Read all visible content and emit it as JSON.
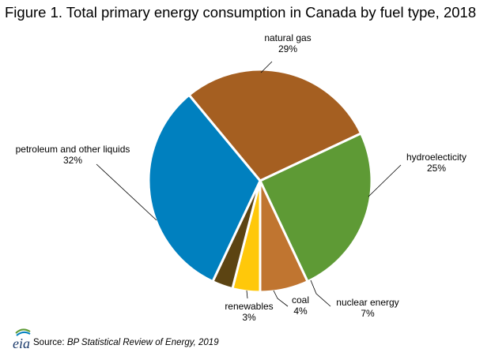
{
  "title": "Figure 1. Total primary energy consumption in Canada by fuel type, 2018",
  "source": {
    "prefix": "Source: ",
    "publication": "BP Statistical Review of Energy, 2019"
  },
  "logo": {
    "name": "eia-logo",
    "text": "eia"
  },
  "colors": {
    "natural_gas": "#a55f21",
    "hydro": "#5e9a35",
    "nuclear": "#c07530",
    "coal": "#ffc80a",
    "renewables": "#5c4412",
    "petroleum": "#0080bf"
  },
  "chart_data": {
    "type": "pie",
    "title": "Figure 1. Total primary energy consumption in Canada by fuel type, 2018",
    "slices": [
      {
        "label": "natural gas",
        "value": 29,
        "value_label": "29%",
        "color": "#a55f21"
      },
      {
        "label": "hydroelecticity",
        "value": 25,
        "value_label": "25%",
        "color": "#5e9a35"
      },
      {
        "label": "nuclear energy",
        "value": 7,
        "value_label": "7%",
        "color": "#c07530"
      },
      {
        "label": "coal",
        "value": 4,
        "value_label": "4%",
        "color": "#ffc80a"
      },
      {
        "label": "renewables",
        "value": 3,
        "value_label": "3%",
        "color": "#5c4412"
      },
      {
        "label": "petroleum and other liquids",
        "value": 32,
        "value_label": "32%",
        "color": "#0080bf"
      }
    ]
  }
}
